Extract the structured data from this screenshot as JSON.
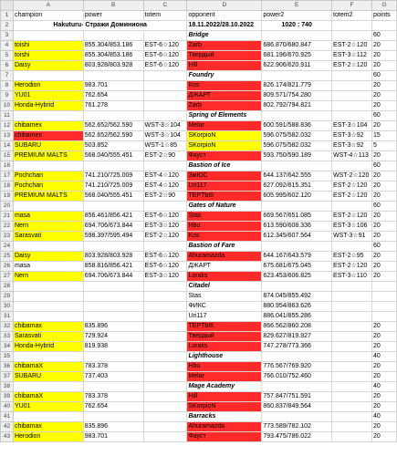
{
  "columns": [
    "A",
    "B",
    "C",
    "D",
    "E",
    "F",
    "G"
  ],
  "header_row": {
    "champion": "champion",
    "power": "power",
    "totem": "totem",
    "opponent": "opponent",
    "power2": "power2",
    "totem2": "totem2",
    "points": "points"
  },
  "title_row": {
    "left": "Hakuturu- Стражи Доминиона",
    "dates": "18.11.2022/28.10.2022",
    "score": "1020 : 740"
  },
  "rows": [
    {
      "n": "3",
      "type": "section",
      "name": "Bridge",
      "points": "60"
    },
    {
      "n": "4",
      "a": "toishi",
      "b": "855.304/853.186",
      "c": "EST-6☆120",
      "d": "Zarb",
      "e": "686.870/680.847",
      "f": "EST-2☆120",
      "g": "20",
      "af": "y",
      "df": "r"
    },
    {
      "n": "5",
      "a": "toishi",
      "b": "855.304/853.186",
      "c": "EST-6☆120",
      "d": "Твердый",
      "e": "681.196/670.925",
      "f": "EST-3☆112",
      "g": "20",
      "af": "y",
      "df": "r"
    },
    {
      "n": "6",
      "a": "Daisy",
      "b": "803.928/803.928",
      "c": "EST-6☆120",
      "d": "Hill",
      "e": "622.906/620.911",
      "f": "EST-2☆120",
      "g": "20",
      "af": "y",
      "df": "r"
    },
    {
      "n": "7",
      "type": "section",
      "name": "Foundry",
      "points": "60"
    },
    {
      "n": "8",
      "a": "Herodion",
      "b": "983.701",
      "c": "",
      "d": "Kos",
      "e": "826.174/821.779",
      "f": "",
      "g": "20",
      "af": "y",
      "df": "r"
    },
    {
      "n": "9",
      "a": "YU01",
      "b": "762.654",
      "c": "",
      "d": "ДЖАРТ",
      "e": "809.571/754.280",
      "f": "",
      "g": "20",
      "af": "y",
      "df": "r"
    },
    {
      "n": "10",
      "a": "Honda-Hybrid",
      "b": "761.278",
      "c": "",
      "d": "Zarb",
      "e": "802.792/794.821",
      "f": "",
      "g": "20",
      "af": "y",
      "df": "r"
    },
    {
      "n": "11",
      "type": "section",
      "name": "Spring of Elements",
      "points": "60"
    },
    {
      "n": "12",
      "a": "chibamex",
      "b": "562.652/562.590",
      "c": "WST-3☆104",
      "d": "Melar",
      "e": "600.591/588.836",
      "f": "EST-3☆104",
      "g": "20",
      "af": "y",
      "df": "r"
    },
    {
      "n": "13",
      "a": "chibamex",
      "b": "562.652/562.590",
      "c": "WST-3☆104",
      "d": "SKorpioN",
      "e": "596.075/582.032",
      "f": "EST-3☆92",
      "g": "15",
      "af": "r",
      "df": "y"
    },
    {
      "n": "14",
      "a": "SUBARU",
      "b": "503.852",
      "c": "WST-1☆85",
      "d": "SKorpioN",
      "e": "596.075/582.032",
      "f": "EST-3☆92",
      "g": "5",
      "af": "y",
      "df": "y"
    },
    {
      "n": "15",
      "a": "PREMIUM MALTS",
      "b": "568.040/555.451",
      "c": "EST-2☆90",
      "d": "Фауст",
      "e": "593.750/590.189",
      "f": "WST-4☆113",
      "g": "20",
      "af": "y",
      "df": "r"
    },
    {
      "n": "16",
      "type": "section",
      "name": "Bastion of Ice",
      "points": "60"
    },
    {
      "n": "17",
      "a": "Pochchan",
      "b": "741.210/725.009",
      "c": "EST-4☆120",
      "d": "ЗмЮС",
      "e": "644.137/642.555",
      "f": "WST-2☆120",
      "g": "20",
      "af": "y",
      "df": "r"
    },
    {
      "n": "18",
      "a": "Pochchan",
      "b": "741.210/725.009",
      "c": "EST-4☆120",
      "d": "Uri117",
      "e": "627.092/615.351",
      "f": "EST-2☆120",
      "g": "20",
      "af": "y",
      "df": "r"
    },
    {
      "n": "19",
      "a": "PREMIUM MALTS",
      "b": "568.040/555.451",
      "c": "EST-2☆90",
      "d": "TEPTbIII",
      "e": "605.995/602.120",
      "f": "EST-2☆120",
      "g": "20",
      "af": "y",
      "df": "r"
    },
    {
      "n": "20",
      "type": "section",
      "name": "Gates of Nature",
      "points": "60"
    },
    {
      "n": "21",
      "a": "masa",
      "b": "856.461/856.421",
      "c": "EST-6☆120",
      "d": "Stas",
      "e": "669.567/651.085",
      "f": "EST-2☆120",
      "g": "20",
      "af": "y",
      "df": "r"
    },
    {
      "n": "22",
      "a": "Nern",
      "b": "694.706/673.844",
      "c": "EST-3☆120",
      "d": "Hbu",
      "e": "613.590/608.336",
      "f": "EST-3☆106",
      "g": "20",
      "af": "y",
      "df": "r"
    },
    {
      "n": "23",
      "a": "Sarasvati",
      "b": "598.397/595.494",
      "c": "EST-2☆120",
      "d": "Kos",
      "e": "612.345/607.564",
      "f": "WST-3☆91",
      "g": "20",
      "af": "y",
      "df": "r"
    },
    {
      "n": "24",
      "type": "section",
      "name": "Bastion of Fare",
      "points": "60"
    },
    {
      "n": "25",
      "a": "Daisy",
      "b": "803.928/803.928",
      "c": "EST-6☆120",
      "d": "Ahuramazda",
      "e": "644.167/643.579",
      "f": "EST-2☆95",
      "g": "20",
      "af": "y",
      "df": "r"
    },
    {
      "n": "26",
      "a": "masa",
      "b": "858.816/856.421",
      "c": "EST-6☆120",
      "d": "ДЖАРТ",
      "e": "675.681/675.045",
      "f": "EST-2☆120",
      "g": "20",
      "af": "",
      "df": ""
    },
    {
      "n": "27",
      "a": "Nern",
      "b": "694.706/673.844",
      "c": "EST-3☆120",
      "d": "Loraks",
      "e": "623.453/606.825",
      "f": "EST-3☆110",
      "g": "20",
      "af": "y",
      "df": "r"
    },
    {
      "n": "28",
      "type": "section",
      "name": "Citadel",
      "points": ""
    },
    {
      "n": "29",
      "a": "",
      "b": "",
      "c": "",
      "d": "Stas",
      "e": "874.045/855.492",
      "f": "",
      "g": "",
      "af": "",
      "df": ""
    },
    {
      "n": "30",
      "a": "",
      "b": "",
      "c": "",
      "d": "ФИКС",
      "e": "880.954/863.626",
      "f": "",
      "g": "",
      "af": "",
      "df": ""
    },
    {
      "n": "31",
      "a": "",
      "b": "",
      "c": "",
      "d": "Uri117",
      "e": "886.041/855.286",
      "f": "",
      "g": "",
      "af": "",
      "df": ""
    },
    {
      "n": "32",
      "a": "chibamax",
      "b": "835.896",
      "c": "",
      "d": "TEPTbIII",
      "e": "866.562/860.208",
      "f": "",
      "g": "20",
      "af": "y",
      "df": "r"
    },
    {
      "n": "33",
      "a": "Sarasvati",
      "b": "729.924",
      "c": "",
      "d": "Твердый",
      "e": "829.627/819.927",
      "f": "",
      "g": "20",
      "af": "y",
      "df": "r"
    },
    {
      "n": "34",
      "a": "Honda-Hybrid",
      "b": "819.938",
      "c": "",
      "d": "Loraks",
      "e": "747.278/773.366",
      "f": "",
      "g": "20",
      "af": "y",
      "df": "r"
    },
    {
      "n": "35",
      "type": "section",
      "name": "Lighthouse",
      "points": "40"
    },
    {
      "n": "36",
      "a": "chibamaX",
      "b": "783.378",
      "c": "",
      "d": "Hbu",
      "e": "776.567/769.920",
      "f": "",
      "g": "20",
      "af": "y",
      "df": "r"
    },
    {
      "n": "37",
      "a": "SUBARU",
      "b": "737.403",
      "c": "",
      "d": "Melar",
      "e": "766.010/752.460",
      "f": "",
      "g": "20",
      "af": "y",
      "df": "r"
    },
    {
      "n": "38",
      "type": "section",
      "name": "Mage Academy",
      "points": "40"
    },
    {
      "n": "39",
      "a": "chibamaX",
      "b": "783.378",
      "c": "",
      "d": "Hill",
      "e": "757.847/751.591",
      "f": "",
      "g": "20",
      "af": "y",
      "df": "r"
    },
    {
      "n": "40",
      "a": "YU01",
      "b": "762.654",
      "c": "",
      "d": "SKorpioN",
      "e": "860.837/849.564",
      "f": "",
      "g": "20",
      "af": "y",
      "df": "r"
    },
    {
      "n": "41",
      "type": "section",
      "name": "Barracks",
      "points": "40"
    },
    {
      "n": "42",
      "a": "chibamax",
      "b": "835.896",
      "c": "",
      "d": "Ahuramazda",
      "e": "773.589/782.102",
      "f": "",
      "g": "20",
      "af": "y",
      "df": "r"
    },
    {
      "n": "43",
      "a": "Herodion",
      "b": "983.701",
      "c": "",
      "d": "Фауст",
      "e": "793.475/786.022",
      "f": "",
      "g": "20",
      "af": "y",
      "df": "r"
    }
  ]
}
